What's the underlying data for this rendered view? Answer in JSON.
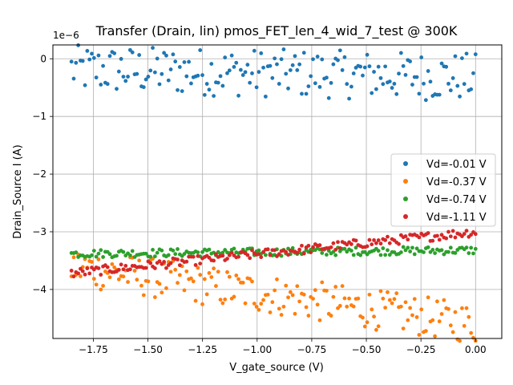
{
  "chart_data": {
    "type": "scatter",
    "title": "Transfer (Drain, lin) pmos_FET_len_4_wid_7_test @ 300K",
    "xlabel": "V_gate_source (V)",
    "ylabel": "Drain_Source I (A)",
    "offset_text": "1e−6",
    "xlim": [
      -1.935,
      0.12
    ],
    "ylim": [
      -4.85,
      0.24
    ],
    "x_ticks": [
      -1.75,
      -1.5,
      -1.25,
      -1.0,
      -0.75,
      -0.5,
      -0.25,
      0.0
    ],
    "x_tick_labels": [
      "−1.75",
      "−1.50",
      "−1.25",
      "−1.00",
      "−0.75",
      "−0.50",
      "−0.25",
      "0.00"
    ],
    "y_ticks": [
      0,
      -1,
      -2,
      -3,
      -4
    ],
    "y_tick_labels": [
      "0",
      "−1",
      "−2",
      "−3",
      "−4"
    ],
    "grid": true,
    "legend_position": "center-right",
    "x_range": [
      -1.85,
      0.0
    ],
    "points_per_series": 180,
    "series": [
      {
        "name": "Vd=-0.01 V",
        "color": "#1f77b4",
        "center_start": -0.18,
        "center_end": -0.32,
        "spread": 0.42
      },
      {
        "name": "Vd=-0.37 V",
        "color": "#ff7f0e",
        "center_start": -3.6,
        "center_end": -4.6,
        "spread": 0.35
      },
      {
        "name": "Vd=-0.74 V",
        "color": "#2ca02c",
        "center_start": -3.38,
        "center_end": -3.32,
        "spread": 0.07
      },
      {
        "name": "Vd=-1.11 V",
        "color": "#d62728",
        "center_start": -3.72,
        "center_end": -3.0,
        "spread": 0.08
      }
    ]
  }
}
